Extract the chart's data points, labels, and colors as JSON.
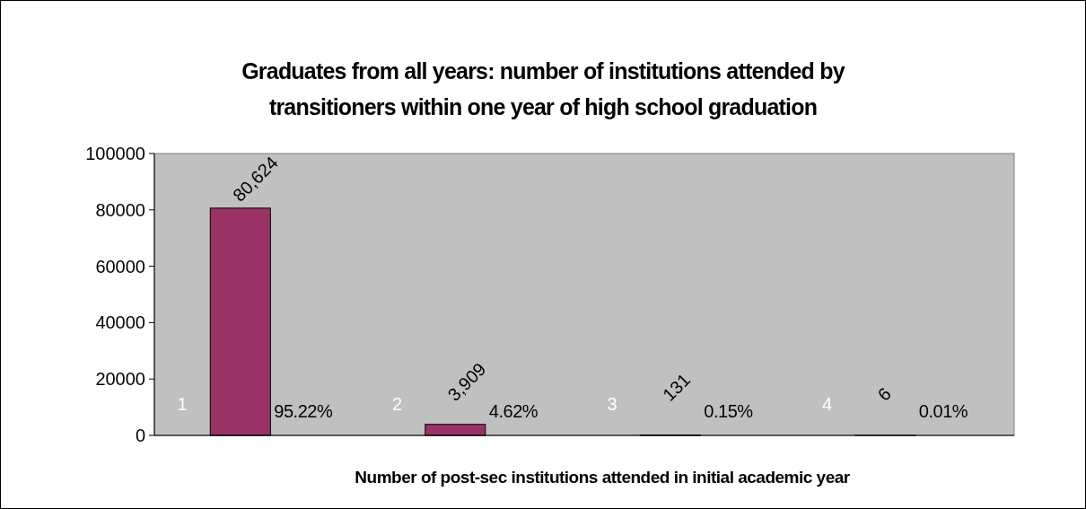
{
  "chart_data": {
    "type": "bar",
    "title": "Graduates from all years: number of institutions attended by transitioners within one year of high school graduation",
    "xlabel": "Number of post-sec institutions attended in initial academic year",
    "categories": [
      "1",
      "2",
      "3",
      "4"
    ],
    "values": [
      80624,
      3909,
      131,
      6
    ],
    "color": "#993366",
    "ylim": [
      0,
      100000
    ],
    "yticks": [
      0,
      20000,
      40000,
      60000,
      80000,
      100000
    ],
    "grid": false,
    "data_labels": true,
    "value_labels": [
      "80,624",
      "3,909",
      "131",
      "6"
    ],
    "annotations": [
      "95.22%",
      "4.62%",
      "0.15%",
      "0.01%"
    ]
  }
}
